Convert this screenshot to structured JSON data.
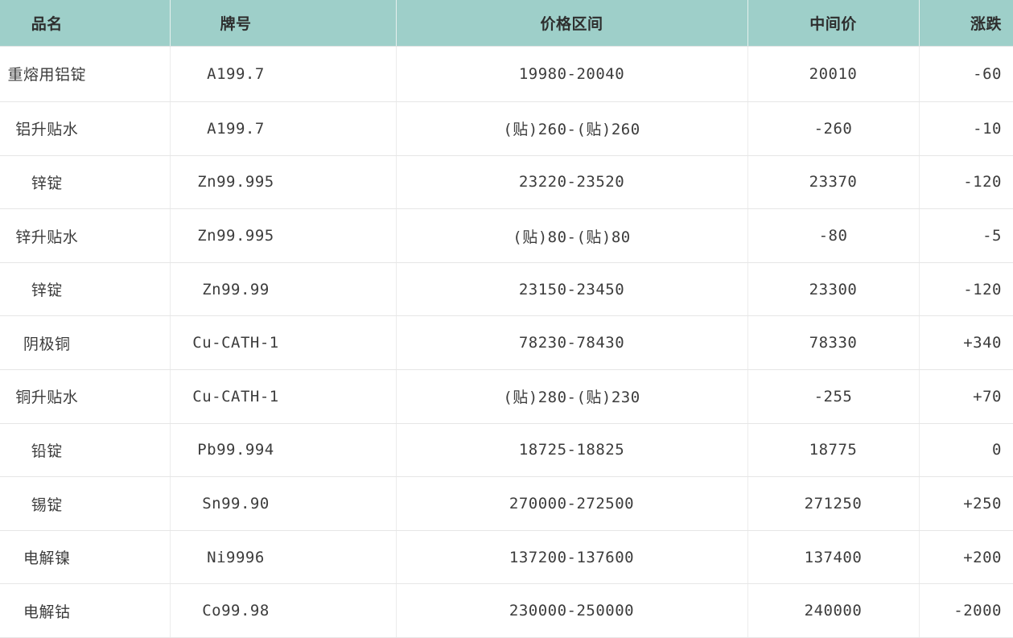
{
  "chart_data": {
    "type": "table",
    "columns": [
      "品名",
      "牌号",
      "价格区间",
      "中间价",
      "涨跌"
    ],
    "rows": [
      [
        "重熔用铝锭",
        "A199.7",
        "19980-20040",
        "20010",
        "-60"
      ],
      [
        "铝升贴水",
        "A199.7",
        "(贴)260-(贴)260",
        "-260",
        "-10"
      ],
      [
        "锌锭",
        "Zn99.995",
        "23220-23520",
        "23370",
        "-120"
      ],
      [
        "锌升贴水",
        "Zn99.995",
        "(贴)80-(贴)80",
        "-80",
        "-5"
      ],
      [
        "锌锭",
        "Zn99.99",
        "23150-23450",
        "23300",
        "-120"
      ],
      [
        "阴极铜",
        "Cu-CATH-1",
        "78230-78430",
        "78330",
        "+340"
      ],
      [
        "铜升贴水",
        "Cu-CATH-1",
        "(贴)280-(贴)230",
        "-255",
        "+70"
      ],
      [
        "铅锭",
        "Pb99.994",
        "18725-18825",
        "18775",
        "0"
      ],
      [
        "锡锭",
        "Sn99.90",
        "270000-272500",
        "271250",
        "+250"
      ],
      [
        "电解镍",
        "Ni9996",
        "137200-137600",
        "137400",
        "+200"
      ],
      [
        "电解钴",
        "Co99.98",
        "230000-250000",
        "240000",
        "-2000"
      ]
    ],
    "layout": {
      "grid": "row-and-column-borders",
      "legend": "none",
      "header_position": "top"
    }
  },
  "colors": {
    "header_bg": "#9ecfc9",
    "header_text": "#2e2e2e",
    "body_text": "#3c3c3c",
    "row_border": "#e6e6e6",
    "column_border": "#ececec"
  }
}
